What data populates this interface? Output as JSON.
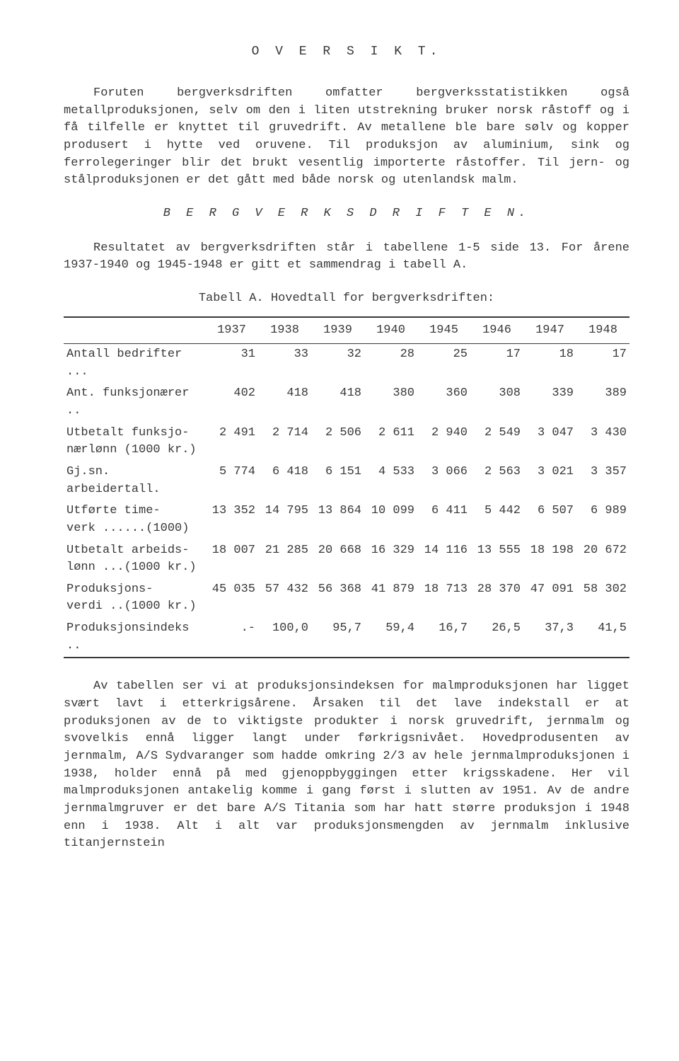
{
  "title": "O V E R S I K T.",
  "paragraphs": {
    "p1": "Foruten bergverksdriften omfatter bergverksstatistikken også metallproduksjonen, selv om den i liten utstrekning bruker norsk råstoff og i få tilfelle er knyttet til gruvedrift. Av metallene ble bare sølv og kopper produsert i hytte ved oruvene. Til produksjon av aluminium, sink og ferrolegeringer blir det brukt vesentlig importerte råstoffer. Til jern- og stålproduksjonen er det gått med både norsk og utenlandsk malm.",
    "p2_heading": "B E R G V E R K S D R I F T E N.",
    "p2": "Resultatet av bergverksdriften står i tabellene 1-5 side 13. For årene 1937-1940 og 1945-1948 er gitt et sammendrag i tabell A.",
    "table_caption": "Tabell A. Hovedtall for bergverksdriften:",
    "p3": "Av tabellen ser vi at produksjonsindeksen for malmproduksjonen har ligget svært lavt i etterkrigsårene. Årsaken til det lave indekstall er at produksjonen av de to viktigste produkter i norsk gruvedrift, jernmalm og svovelkis ennå ligger langt under førkrigsnivået. Hovedprodusenten av jernmalm, A/S Sydvaranger som hadde omkring 2/3 av hele jernmalmproduksjonen i 1938, holder ennå på med gjenoppbyggingen etter krigsskadene. Her vil malmproduksjonen antakelig komme i gang først i slutten av 1951. Av de andre jernmalmgruver er det bare A/S Titania som har hatt større produksjon i 1948 enn i 1938. Alt i alt var produksjonsmengden av jernmalm inklusive titanjernstein"
  },
  "table": {
    "years": [
      "1937",
      "1938",
      "1939",
      "1940",
      "1945",
      "1946",
      "1947",
      "1948"
    ],
    "rows": [
      {
        "label": "Antall bedrifter ...",
        "cells": [
          "31",
          "33",
          "32",
          "28",
          "25",
          "17",
          "18",
          "17"
        ]
      },
      {
        "label": "Ant. funksjonærer ..",
        "cells": [
          "402",
          "418",
          "418",
          "380",
          "360",
          "308",
          "339",
          "389"
        ]
      },
      {
        "label": "Utbetalt funksjo-\nnærlønn (1000 kr.)",
        "cells": [
          "2 491",
          "2 714",
          "2 506",
          "2 611",
          "2 940",
          "2 549",
          "3 047",
          "3 430"
        ]
      },
      {
        "label": "Gj.sn. arbeidertall.",
        "cells": [
          "5 774",
          "6 418",
          "6 151",
          "4 533",
          "3 066",
          "2 563",
          "3 021",
          "3 357"
        ]
      },
      {
        "label": "Utførte time-\nverk ......(1000)",
        "cells": [
          "13 352",
          "14 795",
          "13 864",
          "10 099",
          "6 411",
          "5 442",
          "6 507",
          "6 989"
        ]
      },
      {
        "label": "Utbetalt arbeids-\nlønn ...(1000 kr.)",
        "cells": [
          "18 007",
          "21 285",
          "20 668",
          "16 329",
          "14 116",
          "13 555",
          "18 198",
          "20 672"
        ]
      },
      {
        "label": "Produksjons-\nverdi ..(1000 kr.)",
        "cells": [
          "45 035",
          "57 432",
          "56 368",
          "41 879",
          "18 713",
          "28 370",
          "47 091",
          "58 302"
        ]
      },
      {
        "label": "Produksjonsindeks ..",
        "cells": [
          ".-",
          "100,0",
          "95,7",
          "59,4",
          "16,7",
          "26,5",
          "37,3",
          "41,5"
        ]
      }
    ]
  }
}
